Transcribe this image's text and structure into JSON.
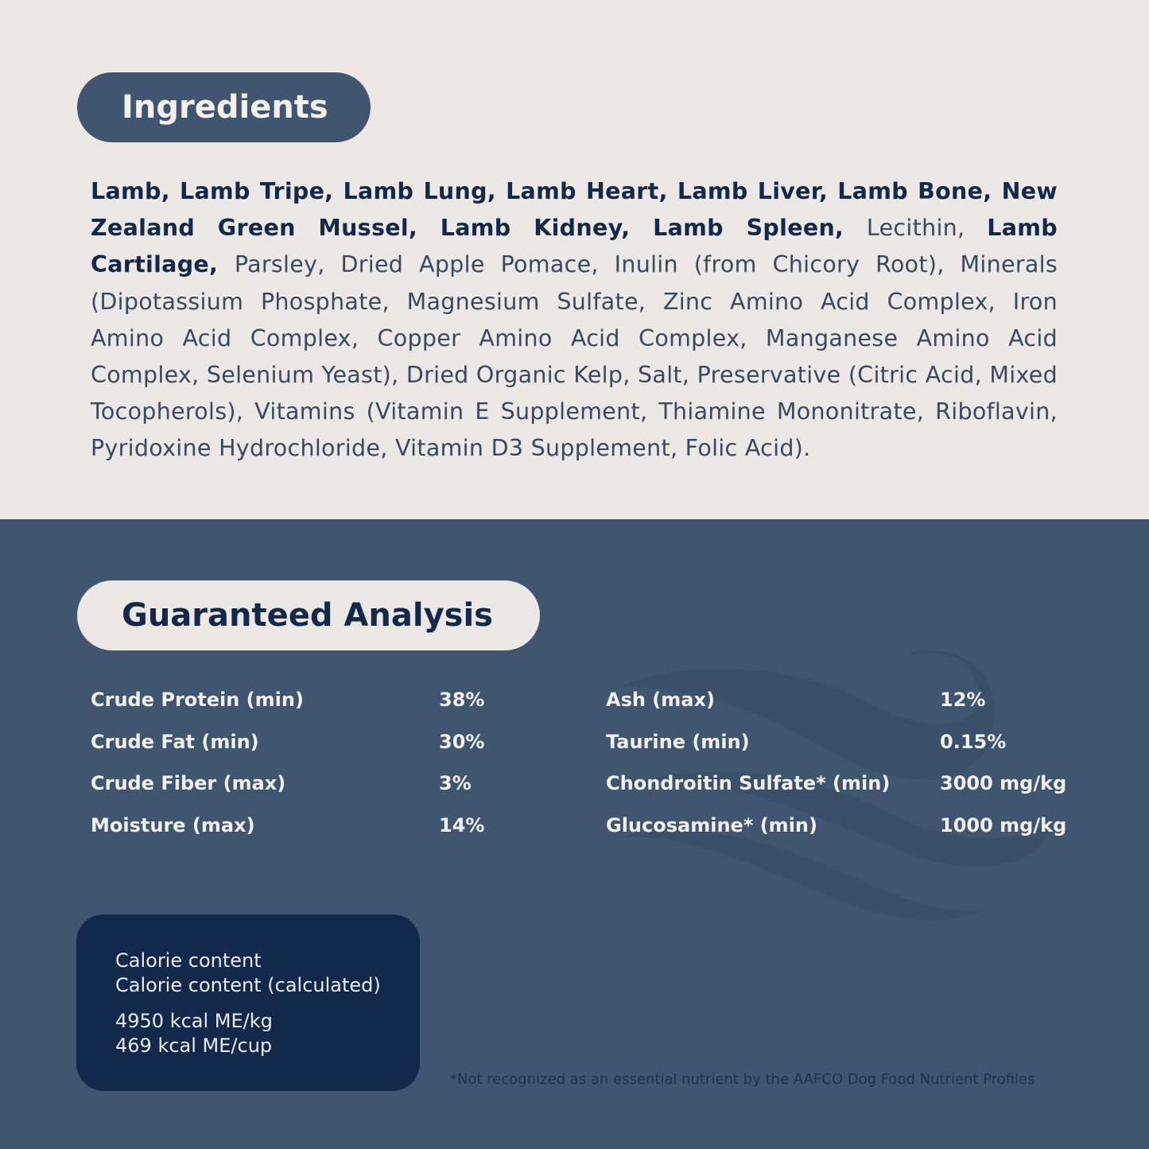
{
  "ingredients": {
    "title": "Ingredients",
    "segments": [
      {
        "text": "Lamb, Lamb Tripe, Lamb Lung, Lamb Heart, Lamb Liver, Lamb Bone, New Zealand Green Mussel, Lamb Kidney, Lamb Spleen, ",
        "bold": true
      },
      {
        "text": "Lecithin, ",
        "bold": false
      },
      {
        "text": "Lamb Cartilage, ",
        "bold": true
      },
      {
        "text": "Parsley, Dried Apple Pomace, Inulin (from Chicory Root), Minerals (Dipotassium Phosphate, Magnesium Sulfate, Zinc Amino Acid Complex, Iron Amino Acid Complex, Copper Amino Acid Complex, Manganese Amino Acid Complex, Selenium Yeast), Dried Organic Kelp, Salt, Preservative (Citric Acid, Mixed Tocopherols), Vitamins (Vitamin E Supplement, Thiamine Mononitrate, Riboflavin, Pyridoxine Hydrochloride, Vitamin D3 Supplement, Folic Acid).",
        "bold": false
      }
    ]
  },
  "analysis": {
    "title": "Guaranteed Analysis",
    "left": [
      {
        "label": "Crude Protein (min)",
        "value": "38%"
      },
      {
        "label": "Crude Fat (min)",
        "value": "30%"
      },
      {
        "label": "Crude Fiber (max)",
        "value": "3%"
      },
      {
        "label": "Moisture (max)",
        "value": "14%"
      }
    ],
    "right": [
      {
        "label": "Ash (max)",
        "value": "12%"
      },
      {
        "label": "Taurine (min)",
        "value": "0.15%"
      },
      {
        "label": "Chondroitin Sulfate* (min)",
        "value": "3000 mg/kg"
      },
      {
        "label": "Glucosamine* (min)",
        "value": "1000 mg/kg"
      }
    ]
  },
  "calorie": {
    "line1": "Calorie content",
    "line2": "Calorie content (calculated)",
    "per_kg": "4950 kcal ME/kg",
    "per_cup": "469 kcal ME/cup"
  },
  "footnote": "*Not recognized as an essential nutrient by the AAFCO Dog Food Nutrient Profiles",
  "colors": {
    "light_bg": "#ebe8e5",
    "blue_bg": "#3f5570",
    "navy": "#13294b"
  }
}
